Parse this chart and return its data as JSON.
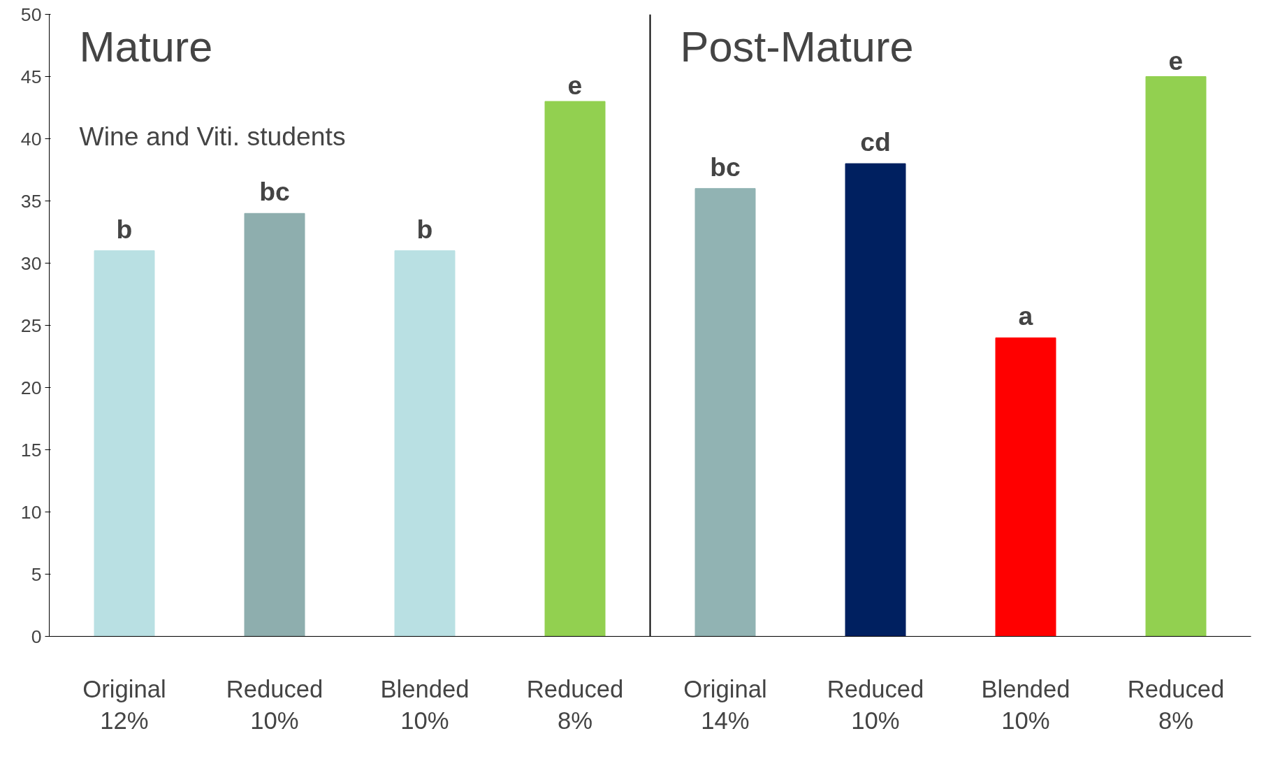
{
  "chart_data": {
    "type": "bar",
    "categories": [
      "Original\n12%",
      "Reduced\n10%",
      "Blended\n10%",
      "Reduced\n8%",
      "Original\n14%",
      "Reduced\n10%",
      "Blended\n10%",
      "Reduced\n8%"
    ],
    "values": [
      31,
      34,
      31,
      43,
      36,
      38,
      24,
      45
    ],
    "colors": [
      "#b9e0e3",
      "#8eaeae",
      "#b9e0e3",
      "#92d050",
      "#91b3b3",
      "#002060",
      "#ff0000",
      "#92d050"
    ],
    "value_labels": [
      "b",
      "bc",
      "b",
      "e",
      "bc",
      "cd",
      "a",
      "e"
    ],
    "annotations": [
      "Mature",
      "Post-Mature",
      "Wine and Viti. students"
    ],
    "ylim": [
      0,
      50
    ],
    "yticks": [
      0,
      5,
      10,
      15,
      20,
      25,
      30,
      35,
      40,
      45,
      50
    ],
    "grid": false
  }
}
